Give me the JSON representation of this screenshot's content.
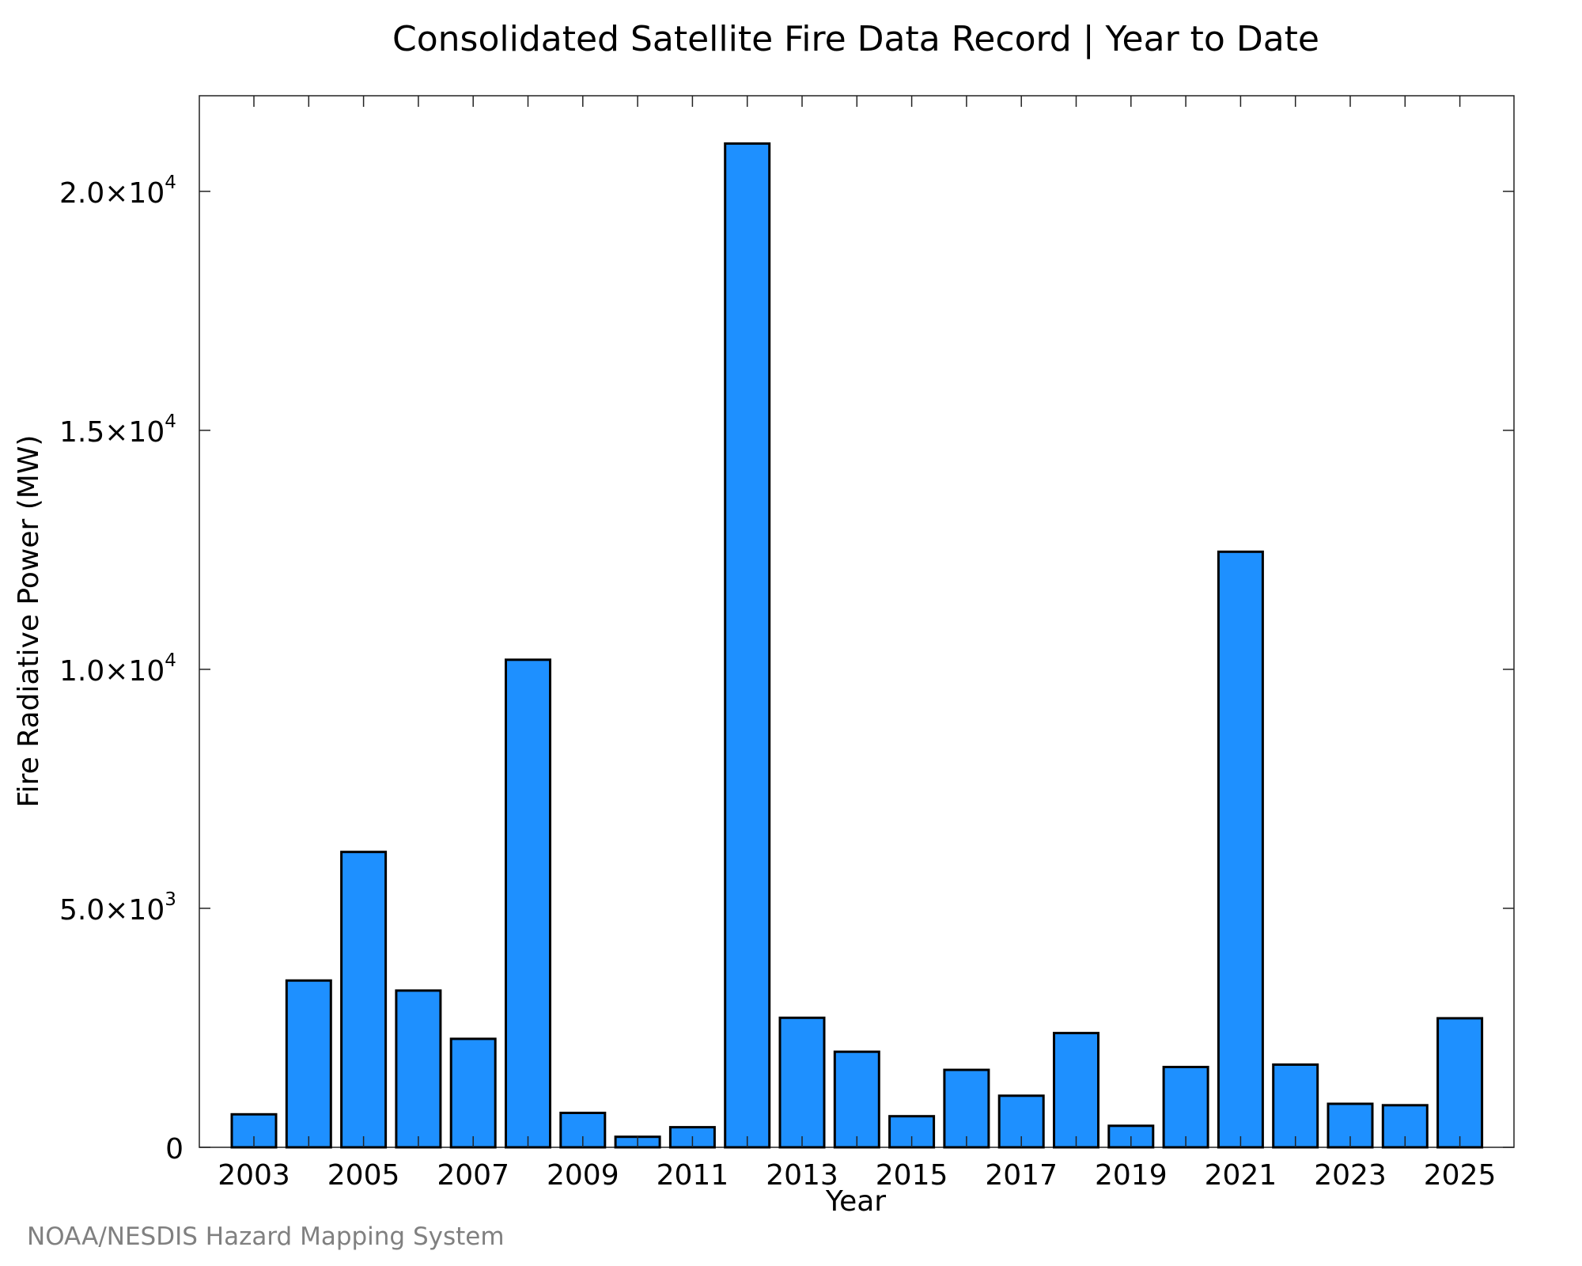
{
  "colors": {
    "bar_fill": "#1e90ff",
    "credit": "#808080"
  },
  "credit": "NOAA/NESDIS Hazard Mapping System",
  "chart_data": {
    "type": "bar",
    "title": "Consolidated Satellite Fire Data Record | Year to Date",
    "xlabel": "Year",
    "ylabel": "Fire Radiative Power (MW)",
    "ylim": [
      0,
      22000
    ],
    "grid": false,
    "categories": [
      "2003",
      "2004",
      "2005",
      "2006",
      "2007",
      "2008",
      "2009",
      "2010",
      "2011",
      "2012",
      "2013",
      "2014",
      "2015",
      "2016",
      "2017",
      "2018",
      "2019",
      "2020",
      "2021",
      "2022",
      "2023",
      "2024",
      "2025"
    ],
    "values": [
      690,
      3490,
      6180,
      3280,
      2270,
      10200,
      720,
      220,
      420,
      21000,
      2710,
      2000,
      650,
      1620,
      1080,
      2390,
      450,
      1680,
      12460,
      1730,
      910,
      880,
      2700
    ],
    "x_tick_labels": [
      "2003",
      "2005",
      "2007",
      "2009",
      "2011",
      "2013",
      "2015",
      "2017",
      "2019",
      "2021",
      "2023",
      "2025"
    ],
    "y_ticks": [
      {
        "value": 0,
        "mantissa": "0",
        "exponent": ""
      },
      {
        "value": 5000,
        "mantissa": "5.0×10",
        "exponent": "3"
      },
      {
        "value": 10000,
        "mantissa": "1.0×10",
        "exponent": "4"
      },
      {
        "value": 15000,
        "mantissa": "1.5×10",
        "exponent": "4"
      },
      {
        "value": 20000,
        "mantissa": "2.0×10",
        "exponent": "4"
      }
    ]
  }
}
